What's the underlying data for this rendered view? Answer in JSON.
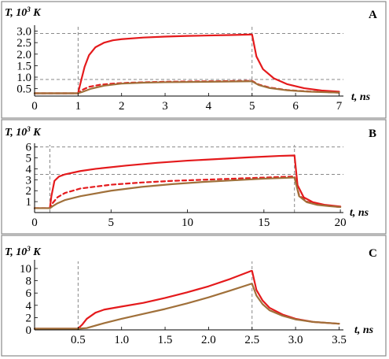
{
  "chart_data": [
    {
      "type": "line",
      "panel_label": "A",
      "ylabel": {
        "prefix": "T, 10",
        "sup": "3",
        "suffix": " K"
      },
      "xlabel": "t, ns",
      "xlim": [
        0,
        7.1
      ],
      "ylim": [
        0.18,
        3.12
      ],
      "xticks": [
        0,
        1,
        2,
        3,
        4,
        5,
        6,
        7
      ],
      "xtick_labels": [
        "0",
        "1",
        "2",
        "3",
        "4",
        "5",
        "6",
        "7"
      ],
      "yticks": [
        0.5,
        1.0,
        1.5,
        2.0,
        2.5,
        3.0
      ],
      "ytick_labels": [
        "0.5",
        "1.0",
        "1.5",
        "2.0",
        "2.5",
        "3.0"
      ],
      "guides": {
        "vertical": [
          1,
          5
        ],
        "horizontal": [
          2.9,
          0.9
        ]
      },
      "series": [
        {
          "color": "#e41a1c",
          "style": "solid",
          "x": [
            0,
            1.0,
            1.05,
            1.15,
            1.25,
            1.4,
            1.6,
            1.8,
            2.0,
            2.5,
            3.0,
            3.5,
            4.0,
            4.5,
            4.95,
            5.0,
            5.1,
            5.25,
            5.5,
            5.8,
            6.2,
            6.6,
            7.0
          ],
          "y": [
            0.3,
            0.3,
            0.7,
            1.45,
            1.95,
            2.3,
            2.5,
            2.6,
            2.65,
            2.72,
            2.76,
            2.79,
            2.81,
            2.83,
            2.85,
            2.85,
            1.9,
            1.35,
            0.95,
            0.7,
            0.52,
            0.42,
            0.37
          ]
        },
        {
          "color": "#e41a1c",
          "style": "dashed",
          "x": [
            0,
            1.0,
            1.1,
            1.25,
            1.5,
            1.8,
            2.2,
            3.0,
            4.0,
            4.95,
            5.0,
            5.15,
            5.4,
            5.8,
            6.3,
            7.0
          ],
          "y": [
            0.3,
            0.3,
            0.45,
            0.58,
            0.67,
            0.72,
            0.76,
            0.8,
            0.82,
            0.84,
            0.84,
            0.68,
            0.55,
            0.44,
            0.38,
            0.33
          ]
        },
        {
          "color": "#a0703a",
          "style": "solid",
          "x": [
            0,
            1.0,
            1.1,
            1.3,
            1.6,
            2.0,
            2.5,
            3.0,
            4.0,
            4.95,
            5.0,
            5.15,
            5.4,
            5.8,
            6.3,
            7.0
          ],
          "y": [
            0.3,
            0.3,
            0.36,
            0.5,
            0.63,
            0.72,
            0.76,
            0.78,
            0.8,
            0.82,
            0.82,
            0.66,
            0.53,
            0.43,
            0.37,
            0.33
          ]
        }
      ]
    },
    {
      "type": "line",
      "panel_label": "B",
      "ylabel": {
        "prefix": "T, 10",
        "sup": "3",
        "suffix": " K"
      },
      "xlabel": "t, ns",
      "xlim": [
        0,
        20.2
      ],
      "ylim": [
        0,
        6.05
      ],
      "xticks": [
        0,
        5,
        10,
        15,
        20
      ],
      "xtick_labels": [
        "0",
        "5",
        "10",
        "15",
        "20"
      ],
      "yticks": [
        1,
        2,
        3,
        4,
        5,
        6
      ],
      "ytick_labels": [
        "1",
        "2",
        "3",
        "4",
        "5",
        "6"
      ],
      "guides": {
        "vertical": [
          1,
          17
        ],
        "horizontal": [
          6.0,
          3.5
        ]
      },
      "series": [
        {
          "color": "#e41a1c",
          "style": "solid",
          "x": [
            0,
            1.0,
            1.1,
            1.3,
            1.6,
            2.0,
            3.0,
            4.0,
            6.0,
            8.0,
            10.0,
            12.0,
            14.0,
            16.0,
            16.95,
            17.0,
            17.2,
            17.6,
            18.2,
            19.0,
            20.0
          ],
          "y": [
            0.4,
            0.4,
            1.5,
            2.9,
            3.3,
            3.5,
            3.8,
            4.0,
            4.3,
            4.55,
            4.75,
            4.9,
            5.05,
            5.18,
            5.22,
            5.22,
            2.5,
            1.4,
            0.95,
            0.7,
            0.55
          ]
        },
        {
          "color": "#e41a1c",
          "style": "dashed",
          "x": [
            0,
            1.0,
            1.2,
            1.5,
            2.0,
            3.0,
            5.0,
            7.0,
            9.0,
            11.0,
            13.0,
            15.0,
            16.95,
            17.0,
            17.3,
            17.8,
            18.5,
            19.3,
            20.0
          ],
          "y": [
            0.4,
            0.4,
            0.9,
            1.4,
            1.8,
            2.2,
            2.55,
            2.75,
            2.9,
            3.0,
            3.1,
            3.2,
            3.3,
            3.3,
            1.6,
            1.0,
            0.75,
            0.6,
            0.5
          ]
        },
        {
          "color": "#a0703a",
          "style": "solid",
          "x": [
            0,
            1.0,
            1.2,
            1.5,
            2.0,
            3.0,
            5.0,
            7.0,
            9.0,
            11.0,
            13.0,
            15.0,
            16.95,
            17.0,
            17.3,
            17.8,
            18.5,
            19.3,
            20.0
          ],
          "y": [
            0.4,
            0.4,
            0.6,
            0.85,
            1.15,
            1.5,
            2.0,
            2.35,
            2.6,
            2.8,
            2.95,
            3.1,
            3.2,
            3.2,
            1.5,
            0.95,
            0.7,
            0.58,
            0.5
          ]
        }
      ]
    },
    {
      "type": "line",
      "panel_label": "C",
      "ylabel": {
        "prefix": "T, 10",
        "sup": "3",
        "suffix": " K"
      },
      "xlabel": "t, ns",
      "xlim": [
        0,
        3.55
      ],
      "ylim": [
        0,
        10.9
      ],
      "xticks": [
        0.5,
        1.0,
        1.5,
        2.0,
        2.5,
        3.0,
        3.5
      ],
      "xtick_labels": [
        "0.5",
        "1.0",
        "1.5",
        "2.0",
        "2.5",
        "3.0",
        "3.5"
      ],
      "yticks": [
        0,
        2,
        4,
        6,
        8,
        10
      ],
      "ytick_labels": [
        "0",
        "2",
        "4",
        "6",
        "8",
        "10"
      ],
      "guides": {
        "vertical": [
          0.5,
          2.5
        ],
        "horizontal": []
      },
      "series": [
        {
          "color": "#e41a1c",
          "style": "solid",
          "x": [
            0,
            0.5,
            0.55,
            0.6,
            0.7,
            0.8,
            1.0,
            1.25,
            1.5,
            1.75,
            2.0,
            2.25,
            2.49,
            2.5,
            2.55,
            2.62,
            2.7,
            2.85,
            3.0,
            3.2,
            3.5
          ],
          "y": [
            0.2,
            0.2,
            0.9,
            1.8,
            2.8,
            3.3,
            3.8,
            4.4,
            5.2,
            6.1,
            7.1,
            8.3,
            9.6,
            9.6,
            6.5,
            4.8,
            3.6,
            2.5,
            1.8,
            1.3,
            1.0
          ]
        },
        {
          "color": "#a0703a",
          "style": "solid",
          "x": [
            0,
            0.5,
            0.6,
            0.8,
            1.0,
            1.25,
            1.5,
            1.75,
            2.0,
            2.25,
            2.49,
            2.5,
            2.55,
            2.62,
            2.7,
            2.85,
            3.0,
            3.2,
            3.5
          ],
          "y": [
            0.2,
            0.2,
            0.3,
            1.1,
            1.8,
            2.6,
            3.4,
            4.3,
            5.3,
            6.4,
            7.5,
            7.5,
            5.6,
            4.2,
            3.2,
            2.3,
            1.7,
            1.3,
            1.0
          ]
        }
      ]
    }
  ]
}
